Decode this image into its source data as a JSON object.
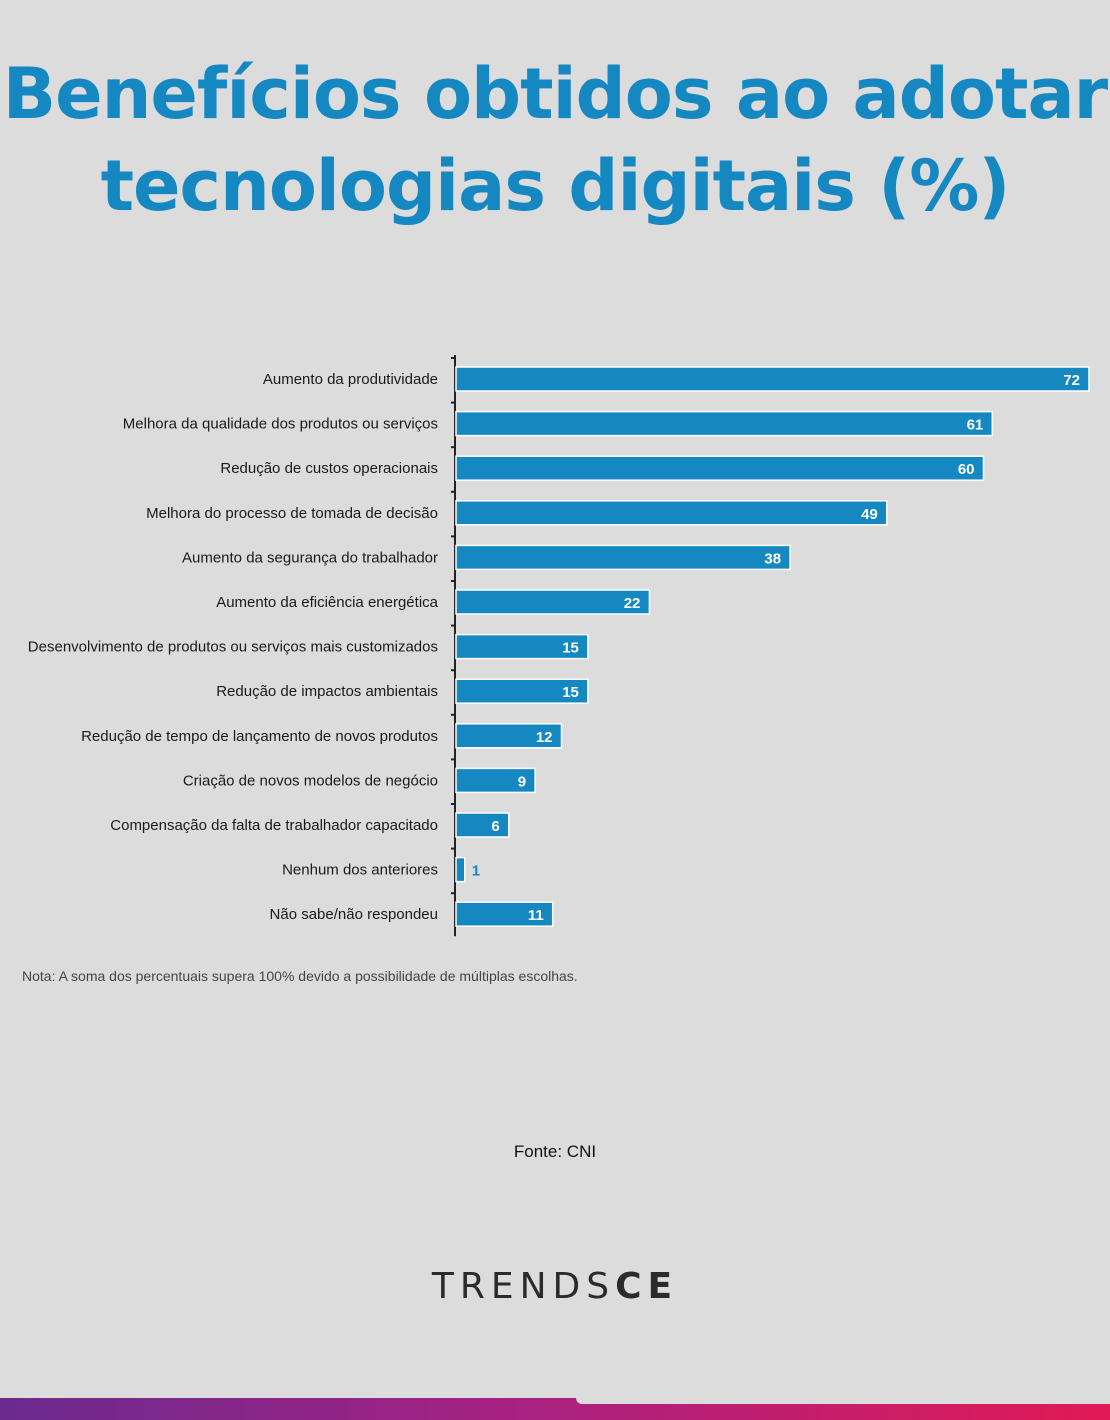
{
  "title_line1": "Benefícios obtidos ao adotar",
  "title_line2": "tecnologias digitais (%)",
  "note": "Nota: A soma dos percentuais supera 100% devido a possibilidade de múltiplas escolhas.",
  "source": "Fonte: CNI",
  "logo": {
    "thin": "TRENDS",
    "bold": "CE"
  },
  "colors": {
    "title": "#1588c2",
    "bar": "#1588c2",
    "background": "#dcdcdd"
  },
  "chart_data": {
    "type": "bar",
    "orientation": "horizontal",
    "categories": [
      "Aumento da produtividade",
      "Melhora da qualidade dos produtos ou serviços",
      "Redução de custos operacionais",
      "Melhora do processo de tomada de decisão",
      "Aumento da segurança do trabalhador",
      "Aumento da eficiência energética",
      "Desenvolvimento de produtos ou serviços mais customizados",
      "Redução de impactos ambientais",
      "Redução de tempo de lançamento de novos produtos",
      "Criação de novos modelos de negócio",
      "Compensação da falta de trabalhador capacitado",
      "Nenhum dos anteriores",
      "Não sabe/não respondeu"
    ],
    "values": [
      72,
      61,
      60,
      49,
      38,
      22,
      15,
      15,
      12,
      9,
      6,
      1,
      11
    ],
    "xlim": [
      0,
      72
    ],
    "grid": false,
    "legend": "none"
  }
}
